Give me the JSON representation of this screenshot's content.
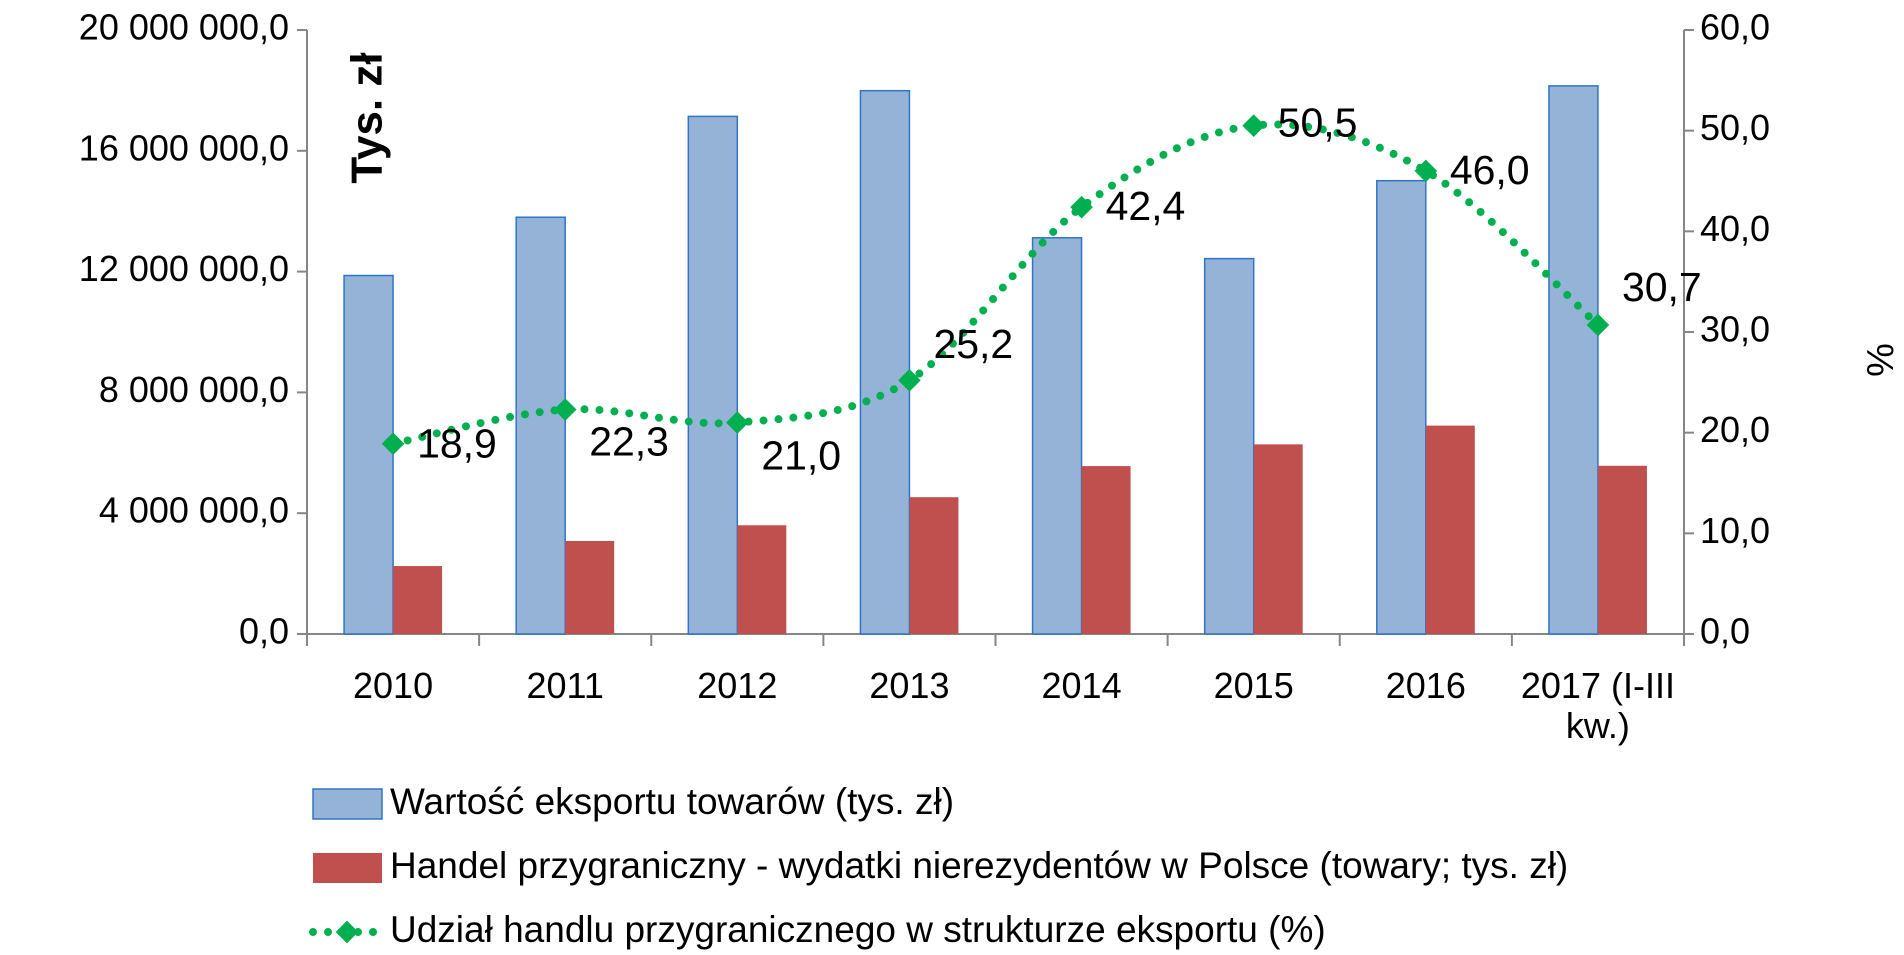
{
  "chart_data": {
    "type": "bar",
    "y_axis_label": "Tys. zł",
    "y2_axis_label": "%",
    "categories": [
      "2010",
      "2011",
      "2012",
      "2013",
      "2014",
      "2015",
      "2016",
      "2017 (I-III kw.)"
    ],
    "series": [
      {
        "name": "Wartość eksportu towarów (tys. zł)",
        "type": "bar",
        "color": "#95b3d7",
        "stroke": "#2e75c9",
        "values": [
          11870000,
          13800000,
          17140000,
          17990000,
          13120000,
          12430000,
          15010000,
          18150000
        ]
      },
      {
        "name": "Handel przygraniczny  - wydatki nierezydentów w Polsce (towary; tys. zł)",
        "type": "bar",
        "color": "#c0504d",
        "values": [
          2250000,
          3080000,
          3600000,
          4530000,
          5560000,
          6280000,
          6900000,
          5570000
        ]
      },
      {
        "name": "Udział handlu przygranicznego w strukturze eksportu (%)",
        "type": "line",
        "axis": "y2",
        "color": "#00b050",
        "values": [
          18.9,
          22.3,
          21.0,
          25.2,
          42.4,
          50.5,
          46.0,
          30.7
        ],
        "value_labels": [
          "18,9",
          "22,3",
          "21,0",
          "25,2",
          "42,4",
          "50,5",
          "46,0",
          "30,7"
        ]
      }
    ],
    "ylim": [
      0,
      20000000
    ],
    "yticks": [
      {
        "value": 0,
        "label": "0,0"
      },
      {
        "value": 4000000,
        "label": "4 000 000,0"
      },
      {
        "value": 8000000,
        "label": "8 000 000,0"
      },
      {
        "value": 12000000,
        "label": "12 000 000,0"
      },
      {
        "value": 16000000,
        "label": "16 000 000,0"
      },
      {
        "value": 20000000,
        "label": "20 000 000,0"
      }
    ],
    "y2lim": [
      0,
      60
    ],
    "y2ticks": [
      {
        "value": 0,
        "label": "0,0"
      },
      {
        "value": 10,
        "label": "10,0"
      },
      {
        "value": 20,
        "label": "20,0"
      },
      {
        "value": 30,
        "label": "30,0"
      },
      {
        "value": 40,
        "label": "40,0"
      },
      {
        "value": 50,
        "label": "50,0"
      },
      {
        "value": 60,
        "label": "60,0"
      }
    ],
    "grid": false,
    "legend": "bottom"
  }
}
